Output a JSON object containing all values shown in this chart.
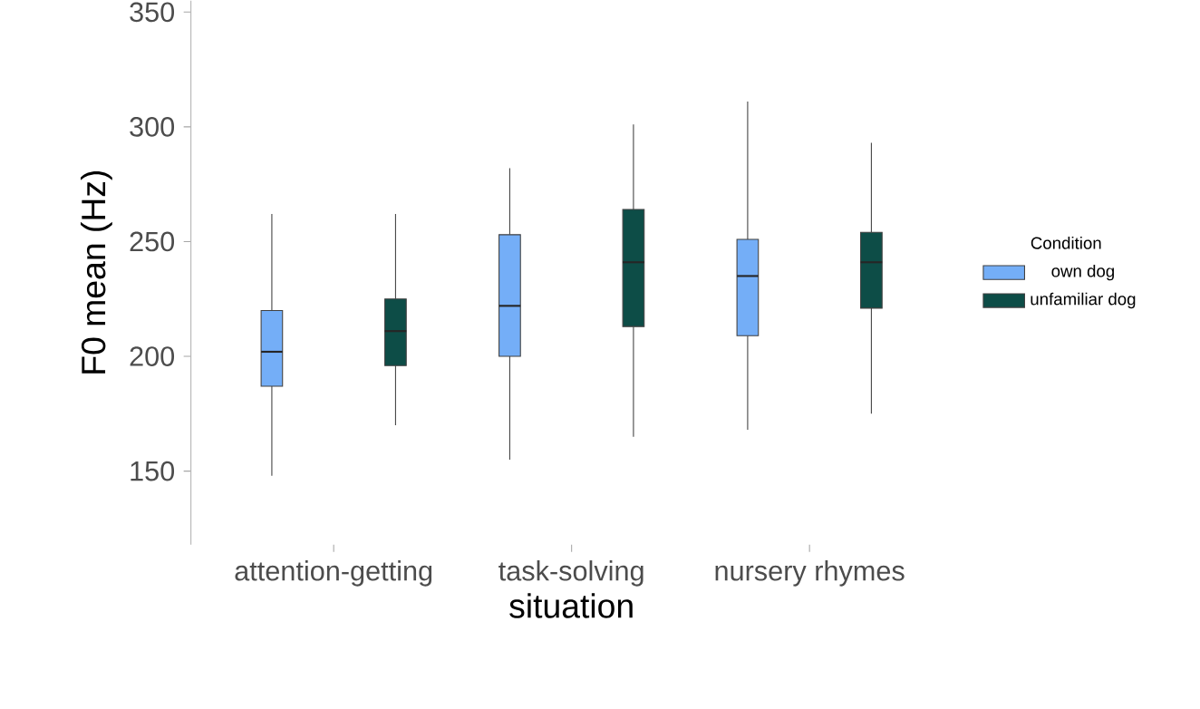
{
  "chart_data": {
    "type": "box",
    "xlabel": "situation",
    "ylabel": "F0 mean (Hz)",
    "legend_title": "Condition",
    "legend": "right",
    "categories": [
      "attention-getting",
      "task-solving",
      "nursery rhymes"
    ],
    "ylim": [
      118,
      355
    ],
    "yticks": [
      150,
      200,
      250,
      300,
      350
    ],
    "series": [
      {
        "name": "own dog",
        "color": "#74aef7",
        "boxes": [
          {
            "low": 148,
            "q1": 187,
            "median": 202,
            "q3": 220,
            "high": 262
          },
          {
            "low": 155,
            "q1": 200,
            "median": 222,
            "q3": 253,
            "high": 282
          },
          {
            "low": 168,
            "q1": 209,
            "median": 235,
            "q3": 251,
            "high": 311
          }
        ]
      },
      {
        "name": "unfamiliar dog",
        "color": "#0d4d47",
        "boxes": [
          {
            "low": 170,
            "q1": 196,
            "median": 211,
            "q3": 225,
            "high": 262
          },
          {
            "low": 165,
            "q1": 213,
            "median": 241,
            "q3": 264,
            "high": 301
          },
          {
            "low": 175,
            "q1": 221,
            "median": 241,
            "q3": 254,
            "high": 293
          }
        ]
      }
    ]
  }
}
